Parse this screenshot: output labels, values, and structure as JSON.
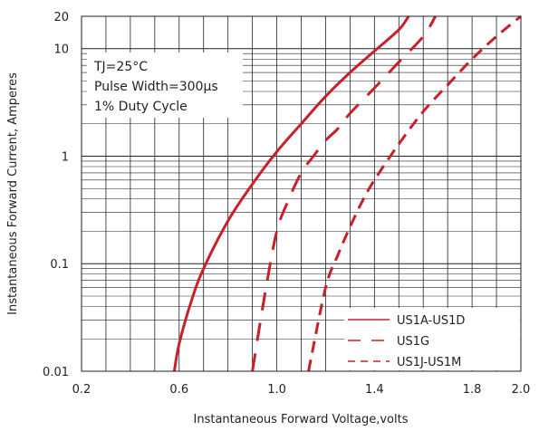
{
  "chart_data": {
    "type": "line",
    "xlabel": "Instantaneous Forward Voltage,volts",
    "ylabel": "Instantaneous Forward Current, Amperes",
    "xlim": [
      0.2,
      2.0
    ],
    "ylim": [
      0.01,
      20
    ],
    "yscale": "log",
    "x_ticks": [
      "0.2",
      "0.6",
      "1.0",
      "1.4",
      "1.8",
      "2.0"
    ],
    "x_tick_values": [
      0.2,
      0.6,
      1.0,
      1.4,
      1.8,
      2.0
    ],
    "y_ticks": [
      "0.01",
      "0.1",
      "1",
      "10",
      "20"
    ],
    "y_tick_values": [
      0.01,
      0.1,
      1,
      10,
      20
    ],
    "grid": true,
    "legend_position": "bottom-right",
    "annotations": [
      "TJ=25°C",
      "Pulse Width=300μs",
      "1% Duty Cycle"
    ],
    "series": [
      {
        "name": "US1A-US1D",
        "color": "#c8202a",
        "dash": "solid",
        "x": [
          0.58,
          0.6,
          0.65,
          0.7,
          0.8,
          0.9,
          1.0,
          1.1,
          1.2,
          1.3,
          1.4,
          1.5,
          1.54
        ],
        "y": [
          0.01,
          0.018,
          0.045,
          0.09,
          0.25,
          0.55,
          1.1,
          2.0,
          3.6,
          6.0,
          9.5,
          15,
          20
        ]
      },
      {
        "name": "US1G",
        "color": "#c8202a",
        "dash": "long",
        "x": [
          0.9,
          0.95,
          1.0,
          1.05,
          1.1,
          1.15,
          1.2,
          1.25,
          1.3,
          1.4,
          1.5,
          1.6,
          1.65
        ],
        "y": [
          0.01,
          0.05,
          0.2,
          0.4,
          0.7,
          1.0,
          1.4,
          1.8,
          2.5,
          4.3,
          7.5,
          13,
          20
        ]
      },
      {
        "name": "US1J-US1M",
        "color": "#c8202a",
        "dash": "short",
        "x": [
          1.13,
          1.2,
          1.25,
          1.3,
          1.35,
          1.4,
          1.5,
          1.6,
          1.7,
          1.8,
          1.9,
          2.0
        ],
        "y": [
          0.01,
          0.06,
          0.12,
          0.22,
          0.38,
          0.6,
          1.3,
          2.6,
          4.6,
          8.0,
          13,
          20
        ]
      }
    ]
  }
}
